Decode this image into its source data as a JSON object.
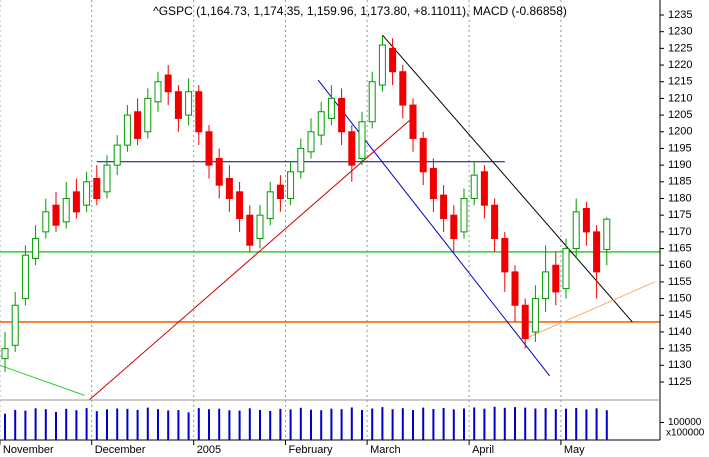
{
  "chart_data": {
    "type": "candlestick",
    "title": "^GSPC (1,164.73, 1,174.35, 1,159.96, 1,173.80, +8.11011), MACD (-0.86858)",
    "categories": [
      "November",
      null,
      null,
      null,
      null,
      null,
      null,
      null,
      null,
      "December",
      null,
      null,
      null,
      null,
      null,
      null,
      null,
      null,
      null,
      "2005",
      null,
      null,
      null,
      null,
      null,
      null,
      null,
      null,
      "February",
      null,
      null,
      null,
      null,
      null,
      null,
      null,
      "March",
      null,
      null,
      null,
      null,
      null,
      null,
      null,
      null,
      null,
      "April",
      null,
      null,
      null,
      null,
      null,
      null,
      null,
      null,
      "May",
      null,
      null,
      null,
      null
    ],
    "open": [
      1132,
      1136,
      1150,
      1162,
      1170,
      1178,
      1173,
      1182,
      1178,
      1186,
      1182,
      1190,
      1196,
      1206,
      1200,
      1209,
      1217,
      1212,
      1205,
      1212,
      1200,
      1192,
      1186,
      1182,
      1175,
      1168,
      1174,
      1184,
      1180,
      1188,
      1194,
      1199,
      1204,
      1210,
      1200,
      1192,
      1203,
      1214,
      1225,
      1218,
      1208,
      1198,
      1189,
      1181,
      1175,
      1170,
      1180,
      1188,
      1178,
      1168,
      1158,
      1148,
      1140,
      1150,
      1160,
      1153,
      1165,
      1177,
      1170,
      1164.73
    ],
    "high": [
      1140,
      1152,
      1166,
      1172,
      1180,
      1182,
      1185,
      1186,
      1188,
      1190,
      1193,
      1199,
      1208,
      1210,
      1213,
      1218,
      1220,
      1214,
      1216,
      1214,
      1202,
      1195,
      1190,
      1185,
      1178,
      1178,
      1185,
      1187,
      1191,
      1198,
      1204,
      1209,
      1214,
      1213,
      1202,
      1206,
      1218,
      1229,
      1228,
      1220,
      1210,
      1200,
      1192,
      1184,
      1178,
      1183,
      1191,
      1190,
      1180,
      1170,
      1160,
      1150,
      1154,
      1166,
      1164,
      1168,
      1180,
      1179,
      1172,
      1174.35
    ],
    "low": [
      1128,
      1134,
      1148,
      1160,
      1168,
      1170,
      1171,
      1174,
      1176,
      1178,
      1180,
      1187,
      1194,
      1196,
      1198,
      1206,
      1208,
      1200,
      1202,
      1196,
      1186,
      1180,
      1176,
      1170,
      1164,
      1165,
      1172,
      1176,
      1178,
      1186,
      1192,
      1196,
      1202,
      1196,
      1185,
      1190,
      1201,
      1212,
      1214,
      1204,
      1194,
      1184,
      1176,
      1170,
      1164,
      1168,
      1178,
      1174,
      1164,
      1152,
      1143,
      1135,
      1137,
      1146,
      1148,
      1150,
      1162,
      1166,
      1150,
      1159.96
    ],
    "close": [
      1135,
      1148,
      1163,
      1168,
      1176,
      1172,
      1180,
      1176,
      1185,
      1180,
      1190,
      1196,
      1205,
      1198,
      1210,
      1215,
      1212,
      1204,
      1212,
      1200,
      1190,
      1184,
      1180,
      1174,
      1166,
      1175,
      1182,
      1180,
      1188,
      1195,
      1200,
      1206,
      1210,
      1200,
      1190,
      1203,
      1215,
      1226,
      1218,
      1208,
      1198,
      1188,
      1180,
      1174,
      1168,
      1180,
      1187,
      1178,
      1168,
      1158,
      1148,
      1138,
      1150,
      1158,
      1152,
      1165,
      1176,
      1170,
      1158,
      1173.8
    ],
    "up_color": "#009900",
    "down_color": "#ee0000",
    "ylim": [
      1125,
      1235
    ],
    "yticks": [
      1125,
      1130,
      1135,
      1140,
      1145,
      1150,
      1155,
      1160,
      1165,
      1170,
      1175,
      1180,
      1185,
      1190,
      1195,
      1200,
      1205,
      1210,
      1215,
      1220,
      1225,
      1230,
      1235
    ],
    "hlines": [
      {
        "value": 1164,
        "color": "#33cc33"
      },
      {
        "value": 1143,
        "color": "#ff6600"
      },
      {
        "value": 1191,
        "color": "#000099",
        "from": 9,
        "to": 49
      }
    ],
    "trendlines": [
      {
        "from": [
          37,
          1229
        ],
        "to": [
          61.5,
          1143
        ],
        "color": "#000000"
      },
      {
        "from": [
          30.7,
          1215.5
        ],
        "to": [
          53.4,
          1126.8
        ],
        "color": "#0000cc"
      },
      {
        "from": [
          7.8,
          1118.4
        ],
        "to": [
          39.7,
          1203.5
        ],
        "color": "#cc0000"
      },
      {
        "from": [
          51,
          1138
        ],
        "to": [
          63.7,
          1155
        ],
        "color": "#ffaa66"
      },
      {
        "from": [
          -0.5,
          1130
        ],
        "to": [
          7.8,
          1121
        ],
        "color": "#33cc33"
      }
    ],
    "volume": [
      150000,
      172000,
      168000,
      181000,
      176000,
      160000,
      178000,
      170000,
      182000,
      165000,
      175000,
      180000,
      178000,
      172000,
      185000,
      176000,
      169000,
      171000,
      158000,
      182000,
      176000,
      179000,
      170000,
      168000,
      181000,
      172000,
      166000,
      178000,
      175000,
      184000,
      173000,
      170000,
      179000,
      176000,
      186000,
      171000,
      180000,
      188000,
      176000,
      182000,
      171000,
      185000,
      177000,
      183000,
      175000,
      180000,
      186000,
      179000,
      190000,
      184000,
      188000,
      185000,
      180000,
      182000,
      176000,
      179000,
      183000,
      175000,
      181000,
      170000
    ],
    "volume_color": "#0000cc",
    "volume_ylim": [
      0,
      200000
    ],
    "volume_yticks": [
      100000
    ],
    "volume_unit": "x100000"
  }
}
